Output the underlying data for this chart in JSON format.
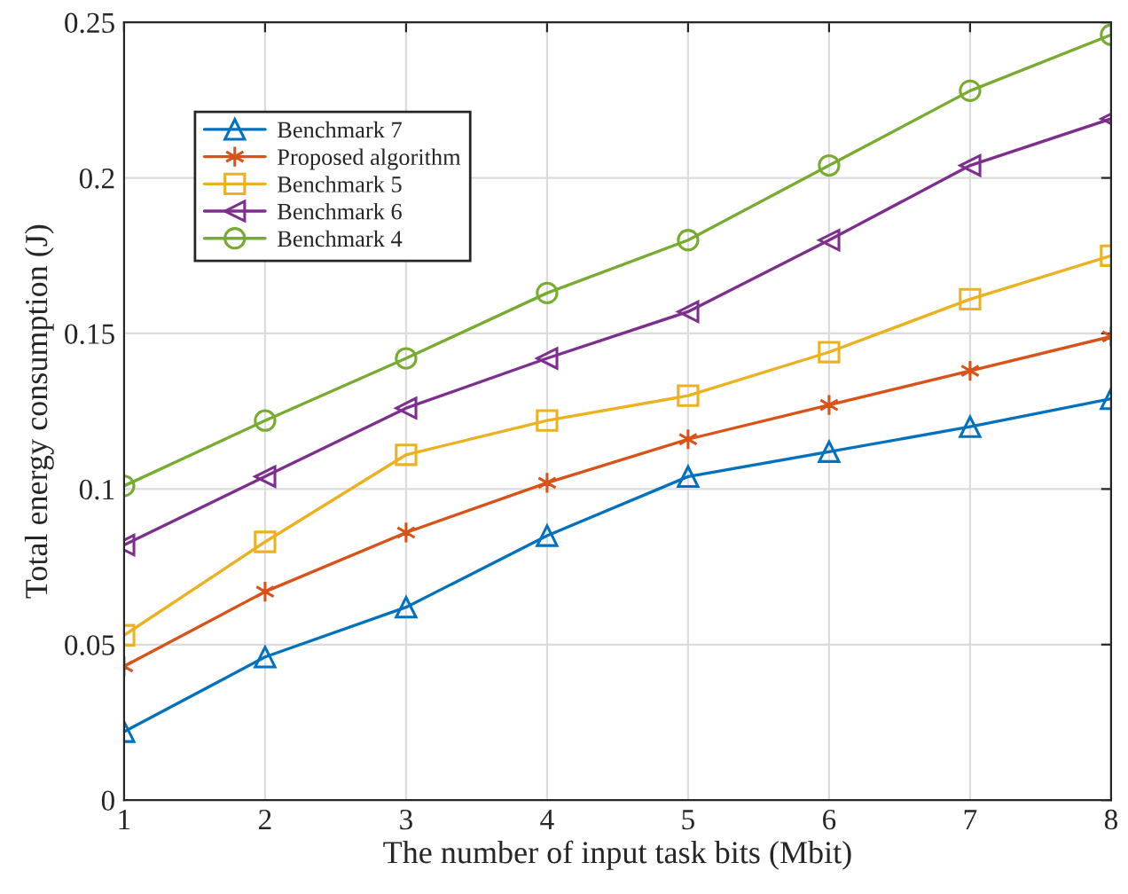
{
  "chart_data": {
    "type": "line",
    "xlabel": "The number of input task bits (Mbit)",
    "ylabel": "Total energy consumption (J)",
    "x": [
      1,
      2,
      3,
      4,
      5,
      6,
      7,
      8
    ],
    "xlim": [
      1,
      8
    ],
    "xticks": [
      1,
      2,
      3,
      4,
      5,
      6,
      7,
      8
    ],
    "ylim": [
      0,
      0.25
    ],
    "yticks": [
      0,
      0.05,
      0.1,
      0.15,
      0.2,
      0.25
    ],
    "grid": true,
    "legend": "top left",
    "line_style": "solid",
    "series": [
      {
        "name": "Benchmark 7",
        "color": "#0072bd",
        "marker": "triangle",
        "values": [
          0.022,
          0.046,
          0.062,
          0.085,
          0.104,
          0.112,
          0.12,
          0.129
        ]
      },
      {
        "name": "Proposed algorithm",
        "color": "#d95319",
        "marker": "cross",
        "values": [
          0.043,
          0.067,
          0.086,
          0.102,
          0.116,
          0.127,
          0.138,
          0.149
        ]
      },
      {
        "name": "Benchmark 5",
        "color": "#edb120",
        "marker": "square",
        "values": [
          0.053,
          0.083,
          0.111,
          0.122,
          0.13,
          0.144,
          0.161,
          0.175
        ]
      },
      {
        "name": "Benchmark 6",
        "color": "#7e2f8e",
        "marker": "triangle-left",
        "values": [
          0.082,
          0.104,
          0.126,
          0.142,
          0.157,
          0.18,
          0.204,
          0.219
        ]
      },
      {
        "name": "Benchmark 4",
        "color": "#77ac30",
        "marker": "circle",
        "values": [
          0.101,
          0.122,
          0.142,
          0.163,
          0.18,
          0.204,
          0.228,
          0.246
        ]
      }
    ]
  }
}
